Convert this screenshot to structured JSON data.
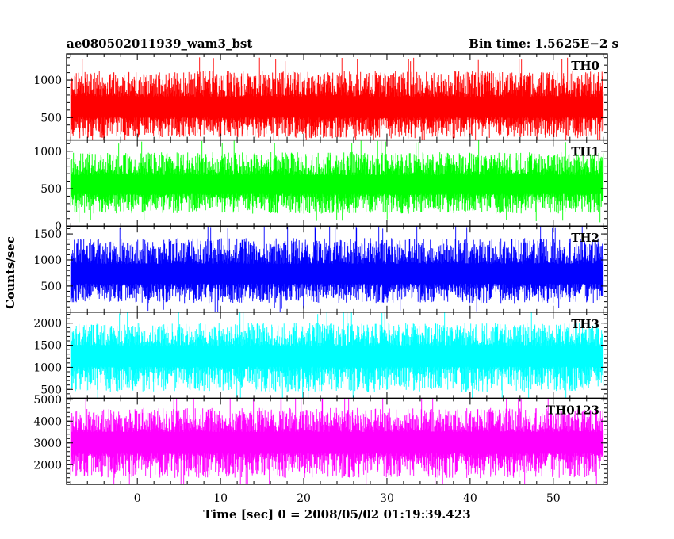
{
  "chart_data": {
    "type": "line",
    "title": "ae080502011939_wam3_bst",
    "subtitle": "Bin time: 1.5625E−2 s",
    "xlabel": "Time [sec] 0 = 2008/05/02 01:19:39.423",
    "ylabel": "Counts/sec",
    "xlim": [
      -8.5,
      56.5
    ],
    "x_ticks": [
      0,
      10,
      20,
      30,
      40,
      50
    ],
    "x_range_data": [
      -8,
      56
    ],
    "bin_time": 0.015625,
    "grid": false,
    "panels": [
      {
        "name": "TH0",
        "color": "#ff0000",
        "ylim": [
          200,
          1350
        ],
        "y_ticks": [
          500,
          1000
        ],
        "mean": 620,
        "noise_low": 150,
        "noise_high": 1250
      },
      {
        "name": "TH1",
        "color": "#00ff00",
        "ylim": [
          0,
          1150
        ],
        "y_ticks": [
          0,
          500,
          1000
        ],
        "mean": 540,
        "noise_low": 100,
        "noise_high": 1100
      },
      {
        "name": "TH2",
        "color": "#0000ff",
        "ylim": [
          0,
          1650
        ],
        "y_ticks": [
          500,
          1000,
          1500
        ],
        "mean": 700,
        "noise_low": 80,
        "noise_high": 1600
      },
      {
        "name": "TH3",
        "color": "#00ffff",
        "ylim": [
          300,
          2250
        ],
        "y_ticks": [
          500,
          1000,
          1500,
          2000
        ],
        "mean": 1250,
        "noise_low": 300,
        "noise_high": 2200
      },
      {
        "name": "TH0123",
        "color": "#ff00ff",
        "ylim": [
          1100,
          5050
        ],
        "y_ticks": [
          2000,
          3000,
          4000,
          5000
        ],
        "mean": 3000,
        "noise_low": 1100,
        "noise_high": 5000
      }
    ]
  }
}
